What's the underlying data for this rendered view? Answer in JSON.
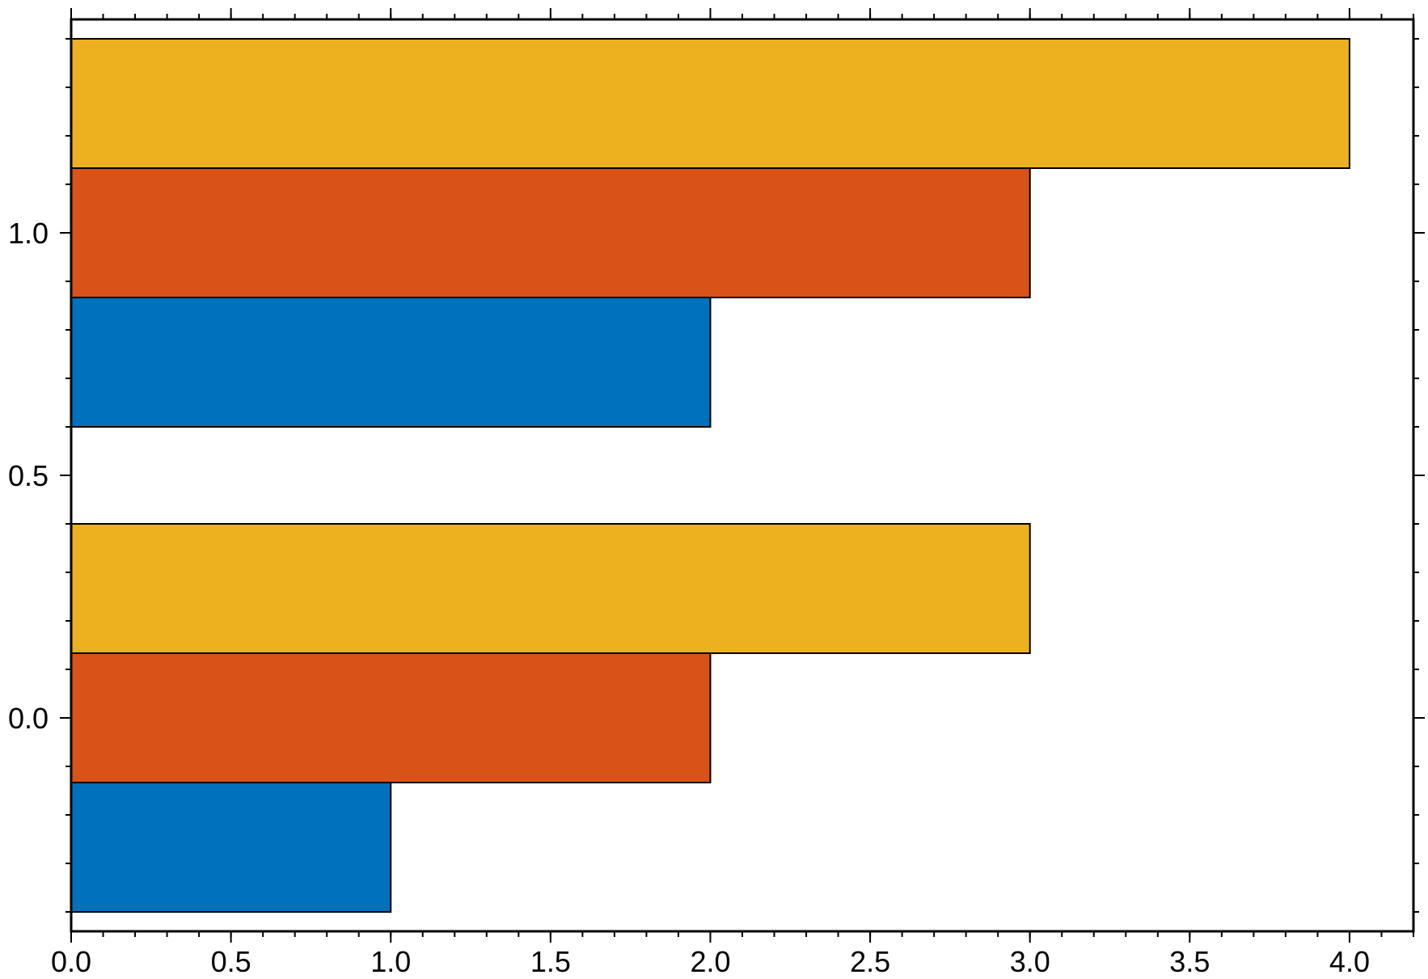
{
  "chart_data": {
    "type": "bar",
    "orientation": "horizontal",
    "grouped": true,
    "categories": [
      0,
      1
    ],
    "series": [
      {
        "values": [
          1,
          2
        ],
        "color": "#0072BD"
      },
      {
        "values": [
          2,
          3
        ],
        "color": "#D95319"
      },
      {
        "values": [
          3,
          4
        ],
        "color": "#EDB120"
      }
    ],
    "xlim": [
      0,
      4.2
    ],
    "ylim": [
      -0.44,
      1.44
    ],
    "x_ticks": [
      {
        "value": 0,
        "label": "0.0"
      },
      {
        "value": 0.5,
        "label": "0.5"
      },
      {
        "value": 1,
        "label": "1.0"
      },
      {
        "value": 1.5,
        "label": "1.5"
      },
      {
        "value": 2,
        "label": "2.0"
      },
      {
        "value": 2.5,
        "label": "2.5"
      },
      {
        "value": 3,
        "label": "3.0"
      },
      {
        "value": 3.5,
        "label": "3.5"
      },
      {
        "value": 4,
        "label": "4.0"
      }
    ],
    "y_ticks": [
      {
        "value": 0,
        "label": "0.0"
      },
      {
        "value": 0.5,
        "label": "0.5"
      },
      {
        "value": 1,
        "label": "1.0"
      }
    ],
    "title": "",
    "xlabel": "",
    "ylabel": "",
    "grid": false,
    "legend": false,
    "edge_color": "#000000"
  }
}
